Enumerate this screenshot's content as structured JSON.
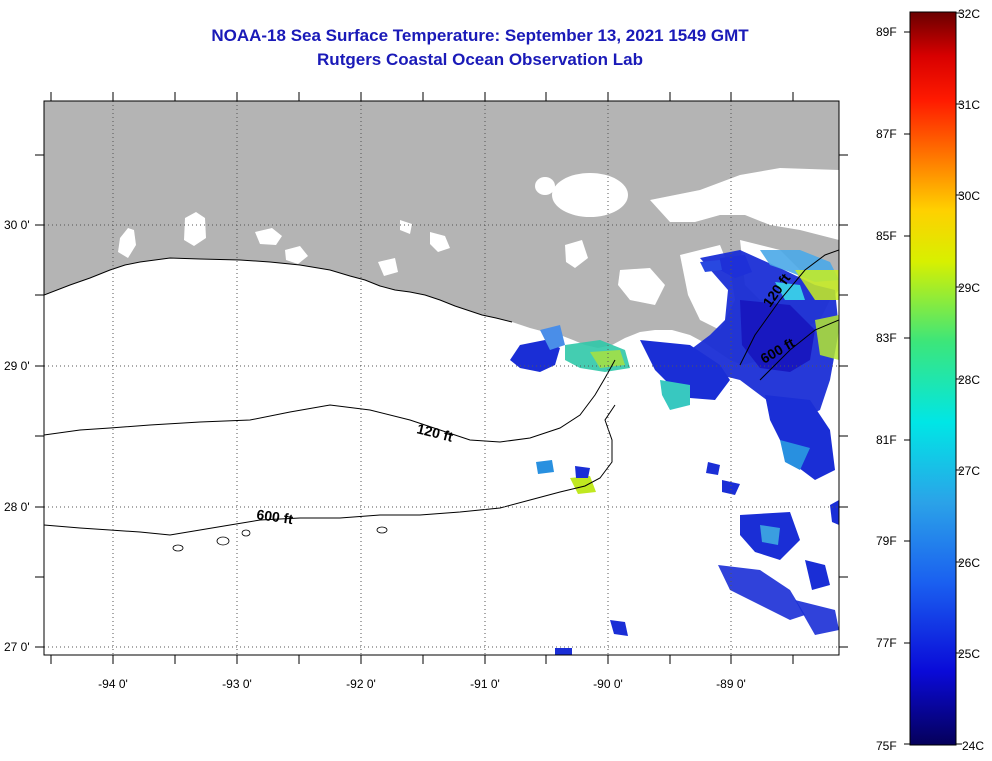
{
  "header": {
    "title": "NOAA-18 Sea Surface Temperature:  September 13, 2021 1549 GMT",
    "subtitle": "Rutgers Coastal Ocean Observation Lab"
  },
  "map": {
    "lat_labels": [
      "30 0'",
      "29 0'",
      "28 0'",
      "27 0'"
    ],
    "lon_labels": [
      "-94 0'",
      "-93 0'",
      "-92 0'",
      "-91 0'",
      "-90 0'",
      "-89 0'"
    ],
    "lon_range": [
      -94.55,
      -88.0
    ],
    "lat_range": [
      26.92,
      30.84
    ],
    "contours": [
      {
        "label": "120 ft"
      },
      {
        "label": "600 ft"
      },
      {
        "label": "120 ft"
      },
      {
        "label": "600 ft"
      }
    ],
    "colors": {
      "land": "#b4b4b4",
      "cloud": "#ffffff",
      "water_blue": "#1e2ad0"
    }
  },
  "colorbar": {
    "celsius": [
      "32C",
      "31C",
      "30C",
      "29C",
      "28C",
      "27C",
      "26C",
      "25C",
      "24C"
    ],
    "fahrenheit": [
      "89F",
      "87F",
      "85F",
      "83F",
      "81F",
      "79F",
      "77F",
      "75F"
    ]
  }
}
